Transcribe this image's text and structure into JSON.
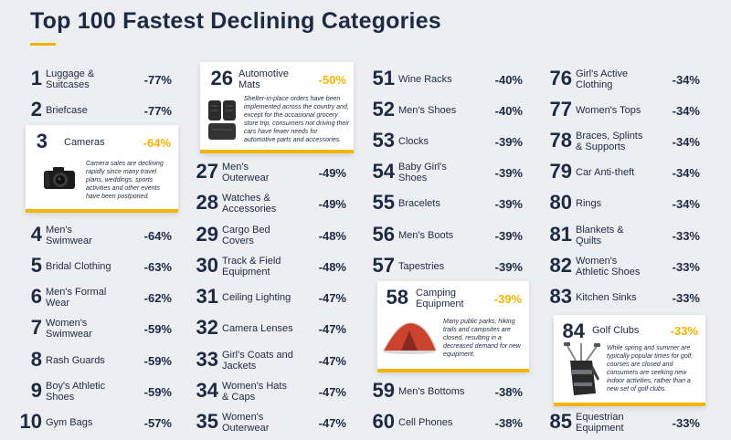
{
  "title": "Top 100 Fastest Declining Categories",
  "accent_color": "#f4b400",
  "items": [
    {
      "rank": "1",
      "label": "Luggage & Suitcases",
      "pct": "-77%"
    },
    {
      "rank": "2",
      "label": "Briefcase",
      "pct": "-77%"
    },
    {
      "rank": "3",
      "label": "Cameras",
      "pct": "-64%",
      "desc": "Camera sales are declining rapidly since many travel plans, weddings, sports activities and other events have been postponed."
    },
    {
      "rank": "4",
      "label": "Men's Swimwear",
      "pct": "-64%"
    },
    {
      "rank": "5",
      "label": "Bridal Clothing",
      "pct": "-63%"
    },
    {
      "rank": "6",
      "label": "Men's Formal Wear",
      "pct": "-62%"
    },
    {
      "rank": "7",
      "label": "Women's Swimwear",
      "pct": "-59%"
    },
    {
      "rank": "8",
      "label": "Rash Guards",
      "pct": "-59%"
    },
    {
      "rank": "9",
      "label": "Boy's Athletic Shoes",
      "pct": "-59%"
    },
    {
      "rank": "10",
      "label": "Gym Bags",
      "pct": "-57%"
    },
    {
      "rank": "26",
      "label": "Automotive Mats",
      "pct": "-50%",
      "desc": "Shelter-in-place orders have been implemented across the country and, except for the occasional grocery store trip, consumers not driving their cars have fewer needs for automotive parts and accessories."
    },
    {
      "rank": "27",
      "label": "Men's Outerwear",
      "pct": "-49%"
    },
    {
      "rank": "28",
      "label": "Watches & Accessories",
      "pct": "-49%"
    },
    {
      "rank": "29",
      "label": "Cargo Bed Covers",
      "pct": "-48%"
    },
    {
      "rank": "30",
      "label": "Track & Field Equipment",
      "pct": "-48%"
    },
    {
      "rank": "31",
      "label": "Ceiling Lighting",
      "pct": "-47%"
    },
    {
      "rank": "32",
      "label": "Camera Lenses",
      "pct": "-47%"
    },
    {
      "rank": "33",
      "label": "Girl's Coats and Jackets",
      "pct": "-47%"
    },
    {
      "rank": "34",
      "label": "Women's Hats & Caps",
      "pct": "-47%"
    },
    {
      "rank": "35",
      "label": "Women's Outerwear",
      "pct": "-47%"
    },
    {
      "rank": "51",
      "label": "Wine Racks",
      "pct": "-40%"
    },
    {
      "rank": "52",
      "label": "Men's Shoes",
      "pct": "-40%"
    },
    {
      "rank": "53",
      "label": "Clocks",
      "pct": "-39%"
    },
    {
      "rank": "54",
      "label": "Baby Girl's Shoes",
      "pct": "-39%"
    },
    {
      "rank": "55",
      "label": "Bracelets",
      "pct": "-39%"
    },
    {
      "rank": "56",
      "label": "Men's Boots",
      "pct": "-39%"
    },
    {
      "rank": "57",
      "label": "Tapestries",
      "pct": "-39%"
    },
    {
      "rank": "58",
      "label": "Camping Equipment",
      "pct": "-39%",
      "desc": "Many public parks, hiking trails and campsites are closed, resulting in a decreased demand for new equipment."
    },
    {
      "rank": "59",
      "label": "Men's Bottoms",
      "pct": "-38%"
    },
    {
      "rank": "60",
      "label": "Cell Phones",
      "pct": "-38%"
    },
    {
      "rank": "76",
      "label": "Girl's Active Clothing",
      "pct": "-34%"
    },
    {
      "rank": "77",
      "label": "Women's Tops",
      "pct": "-34%"
    },
    {
      "rank": "78",
      "label": "Braces, Splints & Supports",
      "pct": "-34%"
    },
    {
      "rank": "79",
      "label": "Car Anti-theft",
      "pct": "-34%"
    },
    {
      "rank": "80",
      "label": "Rings",
      "pct": "-34%"
    },
    {
      "rank": "81",
      "label": "Blankets & Quilts",
      "pct": "-33%"
    },
    {
      "rank": "82",
      "label": "Women's Athletic Shoes",
      "pct": "-33%"
    },
    {
      "rank": "83",
      "label": "Kitchen Sinks",
      "pct": "-33%"
    },
    {
      "rank": "84",
      "label": "Golf Clubs",
      "pct": "-33%",
      "desc": "While spring and summer are typically popular times for golf, courses are closed and consumers are seeking new indoor activities, rather than a new set of golf clubs."
    },
    {
      "rank": "85",
      "label": "Equestrian Equipment",
      "pct": "-33%"
    }
  ]
}
